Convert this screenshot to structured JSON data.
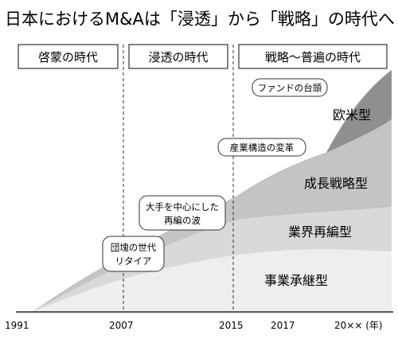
{
  "title": "日本におけるM&Aは「浸透」から「戦略」の時代へ",
  "eras": [
    {
      "label": "啓蒙の時代"
    },
    {
      "label": "浸透の時代"
    },
    {
      "label": "戦略～普遍の時代"
    }
  ],
  "bands": [
    {
      "label": "事業承継型",
      "color": "#eeeeee"
    },
    {
      "label": "業界再編型",
      "color": "#d9d9d9"
    },
    {
      "label": "成長戦略型",
      "color": "#c4c4c4"
    },
    {
      "label": "欧米型",
      "color": "#8f8f8f"
    }
  ],
  "callouts": [
    {
      "lines": [
        "団塊の世代",
        "リタイア"
      ]
    },
    {
      "lines": [
        "大手を中心にした",
        "再編の波"
      ]
    },
    {
      "lines": [
        "産業構造の変革"
      ]
    },
    {
      "lines": [
        "ファンドの台頭"
      ]
    }
  ],
  "years": [
    "1991",
    "2007",
    "2015",
    "2017",
    "20×× (年)"
  ]
}
